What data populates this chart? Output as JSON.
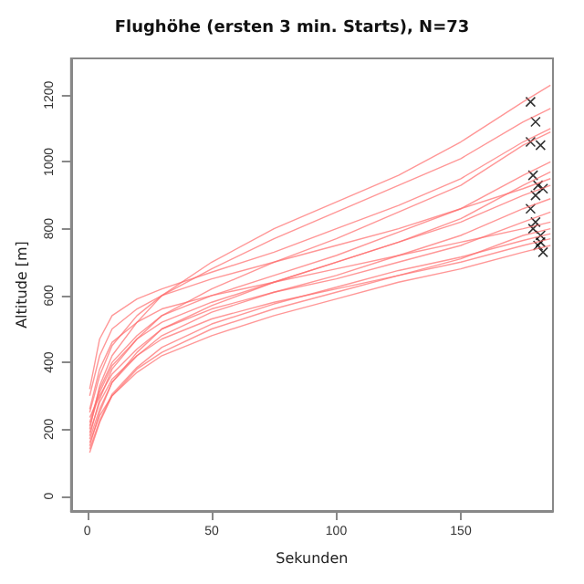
{
  "chart_data": {
    "type": "line",
    "title": "Flughöhe (ersten 3 min. Starts), N=73",
    "xlabel": "Sekunden",
    "ylabel": "Altitude [m]",
    "x": [
      1,
      5,
      10,
      20,
      30,
      50,
      75,
      100,
      125,
      150,
      175,
      186
    ],
    "xlim": [
      -6.5,
      187
    ],
    "xticks": [
      0,
      50,
      100,
      150
    ],
    "ylim": [
      -45,
      1310
    ],
    "yticks": [
      0,
      200,
      400,
      600,
      800,
      1000,
      1200
    ],
    "marker": "none",
    "line_style": "solid",
    "series": [
      {
        "color": "#ff6b6b",
        "values": [
          200,
          330,
          420,
          520,
          600,
          700,
          800,
          880,
          960,
          1060,
          1180,
          1230
        ]
      },
      {
        "color": "#ff6b6b",
        "values": [
          250,
          360,
          450,
          540,
          600,
          680,
          770,
          850,
          930,
          1010,
          1120,
          1160
        ]
      },
      {
        "color": "#ff6b6b",
        "values": [
          180,
          290,
          380,
          470,
          540,
          620,
          700,
          770,
          850,
          930,
          1050,
          1090
        ]
      },
      {
        "color": "#ff6b6b",
        "values": [
          220,
          320,
          400,
          480,
          540,
          600,
          660,
          720,
          790,
          860,
          960,
          1000
        ]
      },
      {
        "color": "#ff6b6b",
        "values": [
          150,
          250,
          340,
          430,
          500,
          570,
          640,
          700,
          760,
          830,
          930,
          970
        ]
      },
      {
        "color": "#ff6b6b",
        "values": [
          300,
          420,
          500,
          560,
          600,
          650,
          700,
          750,
          800,
          860,
          920,
          950
        ]
      },
      {
        "color": "#ff6b6b",
        "values": [
          170,
          260,
          340,
          420,
          480,
          550,
          610,
          660,
          720,
          780,
          860,
          890
        ]
      },
      {
        "color": "#ff6b6b",
        "values": [
          235,
          300,
          365,
          440,
          500,
          560,
          610,
          650,
          700,
          750,
          820,
          850
        ]
      },
      {
        "color": "#ff6b6b",
        "values": [
          130,
          220,
          300,
          380,
          430,
          500,
          560,
          610,
          660,
          710,
          780,
          800
        ]
      },
      {
        "color": "#ff6b6b",
        "values": [
          260,
          380,
          460,
          520,
          560,
          600,
          640,
          680,
          720,
          760,
          800,
          820
        ]
      },
      {
        "color": "#ff6b6b",
        "values": [
          190,
          280,
          350,
          420,
          470,
          530,
          580,
          620,
          660,
          700,
          750,
          770
        ]
      },
      {
        "color": "#ff6b6b",
        "values": [
          160,
          240,
          300,
          370,
          420,
          480,
          540,
          590,
          640,
          680,
          730,
          750
        ]
      },
      {
        "color": "#ff6b6b",
        "values": [
          320,
          470,
          540,
          590,
          620,
          670,
          730,
          800,
          870,
          950,
          1060,
          1100
        ]
      },
      {
        "color": "#ff6b6b",
        "values": [
          210,
          310,
          390,
          470,
          520,
          580,
          640,
          700,
          760,
          820,
          900,
          930
        ]
      },
      {
        "color": "#ff6b6b",
        "values": [
          140,
          225,
          305,
          385,
          445,
          515,
          575,
          625,
          675,
          715,
          765,
          785
        ]
      },
      {
        "type": "scatter",
        "marker": "cross",
        "color": "#000000",
        "x": [
          178,
          180,
          182,
          179,
          181,
          183,
          178,
          180,
          182,
          179,
          181,
          183,
          178,
          180,
          182
        ],
        "values": [
          1180,
          1120,
          1050,
          960,
          930,
          920,
          860,
          820,
          780,
          800,
          750,
          730,
          1060,
          900,
          760
        ]
      }
    ]
  }
}
